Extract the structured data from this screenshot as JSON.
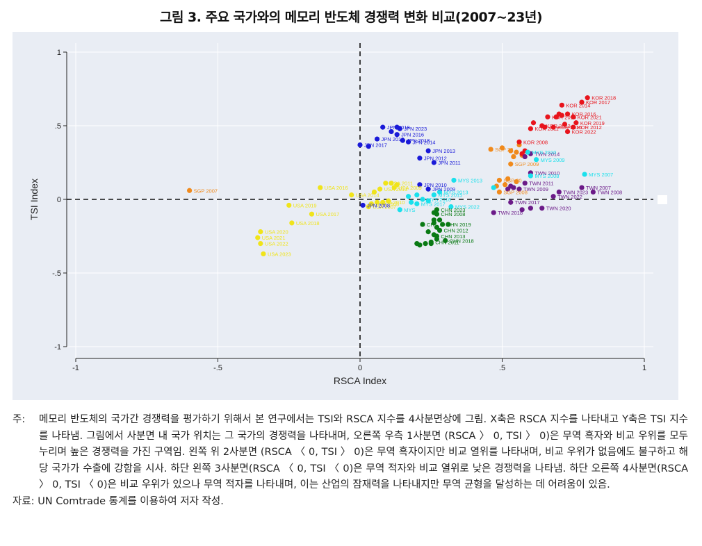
{
  "figure_title": "그림 3. 주요 국가와의 메모리 반도체 경쟁력 변화 비교(2007~23년)",
  "note_label": "주:",
  "note_text": "메모리 반도체의 국가간 경쟁력을 평가하기 위해서 본 연구에서는 TSI와 RSCA 지수를 4사분면상에 그림. X축은 RSCA 지수를 나타내고 Y축은 TSI 지수를 나타냄. 그림에서 사분면 내 국가 위치는 그 국가의 경쟁력을 나타내며, 오른쪽 우측 1사분면 (RSCA 〉 0, TSI 〉 0)은 무역 흑자와 비교 우위를 모두 누리며 높은 경쟁력을 가진 구역임. 왼쪽 위 2사분면 (RSCA 〈 0, TSI 〉 0)은 무역 흑자이지만 비교 열위를 나타내며, 비교 우위가 없음에도 불구하고 해당 국가가 수출에 강함을 시사. 하단 왼쪽 3사분면(RSCA 〈 0, TSI 〈 0)은 무역 적자와 비교 열위로 낮은 경쟁력을 나타냄. 하단 오른쪽 4사분면(RSCA 〉 0, TSI 〈 0)은 비교 우위가 있으나 무역 적자를 나타내며, 이는 산업의 잠재력을 나타내지만 무역 균형을 달성하는 데 어려움이 있음.",
  "source_label": "자료:",
  "source_text": "UN Comtrade 통계를 이용하여 저자 작성.",
  "colors": {
    "plot_background": "#e9edf4",
    "gridline": "#ffffff",
    "USA": "#f0e41a",
    "SGP": "#f08a1c",
    "JPN": "#1a1ad8",
    "KOR": "#e8141c",
    "TWN": "#6b1a88",
    "MYS": "#1ae0ec",
    "CHN": "#0a7a14"
  },
  "chart_data": {
    "type": "scatter",
    "xlabel": "RSCA Index",
    "ylabel": "TSI Index",
    "xlim": [
      -1,
      1
    ],
    "ylim": [
      -1,
      1
    ],
    "xticks": [
      -1,
      -0.5,
      0,
      0.5,
      1
    ],
    "xtick_labels": [
      "-1",
      "-.5",
      "0",
      ".5",
      "1"
    ],
    "yticks": [
      -1,
      -0.5,
      0,
      0.5,
      1
    ],
    "ytick_labels": [
      "-1",
      "-.5",
      "0",
      ".5",
      "1"
    ],
    "grid": true,
    "reference_lines": {
      "x": 0,
      "y": 0,
      "style": "dashed"
    },
    "series": [
      {
        "name": "USA",
        "points": [
          {
            "x": -0.35,
            "y": -0.22,
            "label": "USA 2020"
          },
          {
            "x": -0.36,
            "y": -0.26,
            "label": "USA 2021"
          },
          {
            "x": -0.35,
            "y": -0.3,
            "label": "USA 2022"
          },
          {
            "x": -0.34,
            "y": -0.37,
            "label": "USA 2023"
          },
          {
            "x": -0.14,
            "y": 0.08,
            "label": "USA 2016"
          },
          {
            "x": -0.25,
            "y": -0.04,
            "label": "USA 2019"
          },
          {
            "x": -0.17,
            "y": -0.1,
            "label": "USA 2017"
          },
          {
            "x": -0.24,
            "y": -0.16,
            "label": "USA 2018"
          },
          {
            "x": -0.03,
            "y": 0.03,
            "label": "USA 2014"
          },
          {
            "x": 0.07,
            "y": 0.07,
            "label": "USA 2013"
          },
          {
            "x": 0.09,
            "y": 0.11,
            "label": "USA 2011"
          },
          {
            "x": 0.12,
            "y": 0.08,
            "label": "USA 2009"
          },
          {
            "x": 0.06,
            "y": -0.02,
            "label": "USA 2010"
          },
          {
            "x": 0.04,
            "y": -0.03,
            "label": "USA 2008"
          },
          {
            "x": 0.03,
            "y": -0.05,
            "label": "USA 2007"
          },
          {
            "x": 0.11,
            "y": 0.11,
            "label": ""
          },
          {
            "x": 0.13,
            "y": 0.1,
            "label": ""
          },
          {
            "x": 0.08,
            "y": -0.02,
            "label": ""
          },
          {
            "x": 0.1,
            "y": -0.01,
            "label": ""
          },
          {
            "x": 0.05,
            "y": 0.05,
            "label": ""
          }
        ]
      },
      {
        "name": "SGP",
        "points": [
          {
            "x": -0.6,
            "y": 0.06,
            "label": "SGP 2007"
          },
          {
            "x": 0.46,
            "y": 0.34,
            "label": "SGP 20"
          },
          {
            "x": 0.53,
            "y": 0.24,
            "label": "SGP 2009"
          },
          {
            "x": 0.49,
            "y": 0.13,
            "label": "SGP 20"
          },
          {
            "x": 0.49,
            "y": 0.05,
            "label": "SGP 2008"
          },
          {
            "x": 0.53,
            "y": 0.33,
            "label": ""
          },
          {
            "x": 0.55,
            "y": 0.32,
            "label": ""
          },
          {
            "x": 0.56,
            "y": 0.37,
            "label": ""
          },
          {
            "x": 0.57,
            "y": 0.3,
            "label": ""
          },
          {
            "x": 0.54,
            "y": 0.29,
            "label": ""
          },
          {
            "x": 0.55,
            "y": 0.12,
            "label": ""
          },
          {
            "x": 0.51,
            "y": 0.1,
            "label": ""
          },
          {
            "x": 0.52,
            "y": 0.14,
            "label": ""
          },
          {
            "x": 0.48,
            "y": 0.09,
            "label": ""
          },
          {
            "x": 0.5,
            "y": 0.35,
            "label": ""
          }
        ]
      },
      {
        "name": "JPN",
        "points": [
          {
            "x": 0.08,
            "y": 0.49,
            "label": "JPN 2019"
          },
          {
            "x": 0.14,
            "y": 0.48,
            "label": "JPN 2023"
          },
          {
            "x": 0.13,
            "y": 0.44,
            "label": "JPN 2016"
          },
          {
            "x": 0.06,
            "y": 0.41,
            "label": "JPN 2015"
          },
          {
            "x": 0.15,
            "y": 0.4,
            "label": "JPN 2018"
          },
          {
            "x": 0.17,
            "y": 0.39,
            "label": "JPN 2014"
          },
          {
            "x": 0.0,
            "y": 0.37,
            "label": "JPN 2017"
          },
          {
            "x": 0.24,
            "y": 0.33,
            "label": "JPN 2013"
          },
          {
            "x": 0.21,
            "y": 0.28,
            "label": "JPN 2012"
          },
          {
            "x": 0.26,
            "y": 0.25,
            "label": "JPN 2011"
          },
          {
            "x": 0.21,
            "y": 0.1,
            "label": "JPN 2010"
          },
          {
            "x": 0.24,
            "y": 0.07,
            "label": "JPN 2009"
          },
          {
            "x": 0.01,
            "y": -0.04,
            "label": "JPN 2008"
          },
          {
            "x": 0.11,
            "y": 0.46,
            "label": ""
          },
          {
            "x": 0.03,
            "y": 0.36,
            "label": ""
          },
          {
            "x": 0.13,
            "y": 0.49,
            "label": ""
          }
        ]
      },
      {
        "name": "KOR",
        "points": [
          {
            "x": 0.8,
            "y": 0.69,
            "label": "KOR 2018"
          },
          {
            "x": 0.78,
            "y": 0.66,
            "label": "KOR 2017"
          },
          {
            "x": 0.71,
            "y": 0.64,
            "label": "KOR 2014"
          },
          {
            "x": 0.73,
            "y": 0.58,
            "label": "KOR 2016"
          },
          {
            "x": 0.75,
            "y": 0.56,
            "label": "KOR 2021"
          },
          {
            "x": 0.66,
            "y": 0.56,
            "label": "KOR 2010"
          },
          {
            "x": 0.76,
            "y": 0.52,
            "label": "KOR 2019"
          },
          {
            "x": 0.75,
            "y": 0.49,
            "label": "KOR 2012"
          },
          {
            "x": 0.73,
            "y": 0.46,
            "label": "KOR 2022"
          },
          {
            "x": 0.64,
            "y": 0.5,
            "label": "KOR 2013"
          },
          {
            "x": 0.68,
            "y": 0.49,
            "label": "KOR 2015"
          },
          {
            "x": 0.56,
            "y": 0.39,
            "label": "KOR 2008"
          },
          {
            "x": 0.6,
            "y": 0.48,
            "label": "KOR 2011"
          },
          {
            "x": 0.7,
            "y": 0.58,
            "label": ""
          },
          {
            "x": 0.61,
            "y": 0.52,
            "label": ""
          },
          {
            "x": 0.72,
            "y": 0.51,
            "label": ""
          },
          {
            "x": 0.69,
            "y": 0.56,
            "label": ""
          },
          {
            "x": 0.65,
            "y": 0.49,
            "label": ""
          },
          {
            "x": 0.71,
            "y": 0.57,
            "label": ""
          },
          {
            "x": 0.58,
            "y": 0.33,
            "label": ""
          },
          {
            "x": 0.57,
            "y": 0.31,
            "label": ""
          }
        ]
      },
      {
        "name": "TWN",
        "points": [
          {
            "x": 0.6,
            "y": 0.31,
            "label": "TWN 2014"
          },
          {
            "x": 0.6,
            "y": 0.18,
            "label": "TWN 2010"
          },
          {
            "x": 0.58,
            "y": 0.11,
            "label": "TWN 2011"
          },
          {
            "x": 0.56,
            "y": 0.07,
            "label": "TWN 2009"
          },
          {
            "x": 0.78,
            "y": 0.08,
            "label": "TWN 2007"
          },
          {
            "x": 0.82,
            "y": 0.05,
            "label": "TWN 2008"
          },
          {
            "x": 0.7,
            "y": 0.05,
            "label": "TWN 2023"
          },
          {
            "x": 0.68,
            "y": 0.02,
            "label": "TWN 2022"
          },
          {
            "x": 0.53,
            "y": -0.02,
            "label": "TWN 2017"
          },
          {
            "x": 0.64,
            "y": -0.06,
            "label": "TWN 2020"
          },
          {
            "x": 0.47,
            "y": -0.09,
            "label": "TWN 2018"
          },
          {
            "x": 0.6,
            "y": -0.06,
            "label": ""
          },
          {
            "x": 0.57,
            "y": -0.07,
            "label": ""
          },
          {
            "x": 0.53,
            "y": 0.09,
            "label": ""
          },
          {
            "x": 0.52,
            "y": 0.07,
            "label": ""
          },
          {
            "x": 0.54,
            "y": 0.08,
            "label": ""
          },
          {
            "x": 0.58,
            "y": 0.29,
            "label": ""
          }
        ]
      },
      {
        "name": "MYS",
        "points": [
          {
            "x": 0.79,
            "y": 0.17,
            "label": "MYS 2007"
          },
          {
            "x": 0.62,
            "y": 0.27,
            "label": "MYS 2009"
          },
          {
            "x": 0.59,
            "y": 0.32,
            "label": "MYS 2010"
          },
          {
            "x": 0.6,
            "y": 0.16,
            "label": "MYS 2008"
          },
          {
            "x": 0.33,
            "y": 0.13,
            "label": "MYS 2013"
          },
          {
            "x": 0.28,
            "y": 0.05,
            "label": "MYS 2013"
          },
          {
            "x": 0.32,
            "y": -0.05,
            "label": "MYS 2022"
          },
          {
            "x": 0.22,
            "y": 0.0,
            "label": "MYS 2016"
          },
          {
            "x": 0.2,
            "y": -0.03,
            "label": "MYS 2017"
          },
          {
            "x": 0.26,
            "y": 0.03,
            "label": "MYS 2015"
          },
          {
            "x": 0.14,
            "y": -0.07,
            "label": "MYS"
          },
          {
            "x": 0.47,
            "y": 0.08,
            "label": ""
          },
          {
            "x": 0.18,
            "y": -0.02,
            "label": ""
          },
          {
            "x": 0.24,
            "y": -0.01,
            "label": ""
          },
          {
            "x": 0.17,
            "y": 0.02,
            "label": ""
          },
          {
            "x": 0.2,
            "y": 0.03,
            "label": ""
          }
        ]
      },
      {
        "name": "CHN",
        "points": [
          {
            "x": 0.27,
            "y": -0.07,
            "label": "CHN 2023"
          },
          {
            "x": 0.27,
            "y": -0.1,
            "label": "CHN 2008"
          },
          {
            "x": 0.29,
            "y": -0.17,
            "label": "CHN 2019"
          },
          {
            "x": 0.28,
            "y": -0.21,
            "label": "CHN 2012"
          },
          {
            "x": 0.27,
            "y": -0.25,
            "label": "CHN 2013"
          },
          {
            "x": 0.3,
            "y": -0.28,
            "label": "CHN 2018"
          },
          {
            "x": 0.25,
            "y": -0.29,
            "label": "CHN 2011"
          },
          {
            "x": 0.26,
            "y": -0.09,
            "label": ""
          },
          {
            "x": 0.22,
            "y": -0.17,
            "label": "CH"
          },
          {
            "x": 0.26,
            "y": -0.14,
            "label": ""
          },
          {
            "x": 0.26,
            "y": -0.16,
            "label": ""
          },
          {
            "x": 0.27,
            "y": -0.19,
            "label": ""
          },
          {
            "x": 0.24,
            "y": -0.22,
            "label": ""
          },
          {
            "x": 0.26,
            "y": -0.24,
            "label": ""
          },
          {
            "x": 0.21,
            "y": -0.31,
            "label": ""
          },
          {
            "x": 0.2,
            "y": -0.3,
            "label": ""
          },
          {
            "x": 0.23,
            "y": -0.3,
            "label": ""
          },
          {
            "x": 0.25,
            "y": -0.3,
            "label": ""
          },
          {
            "x": 0.27,
            "y": -0.27,
            "label": ""
          },
          {
            "x": 0.28,
            "y": -0.14,
            "label": ""
          },
          {
            "x": 0.31,
            "y": -0.17,
            "label": ""
          }
        ]
      }
    ]
  }
}
